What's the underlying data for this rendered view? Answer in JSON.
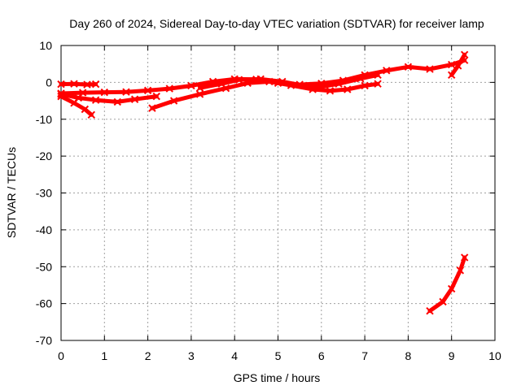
{
  "chart_data": {
    "type": "line",
    "title": "Day 260 of 2024, Sidereal Day-to-day VTEC variation (SDTVAR) for receiver lamp",
    "xlabel": "GPS time / hours",
    "ylabel": "SDTVAR / TECUs",
    "xlim": [
      0,
      10
    ],
    "ylim": [
      -70,
      10
    ],
    "x_ticks": [
      "0",
      "1",
      "2",
      "3",
      "4",
      "5",
      "6",
      "7",
      "8",
      "9",
      "10"
    ],
    "y_ticks": [
      "-70",
      "-60",
      "-50",
      "-40",
      "-30",
      "-20",
      "-10",
      "0",
      "10"
    ],
    "grid": true,
    "legend": "none",
    "series_color": "#ff0000",
    "series": [
      {
        "x": [
          0.0,
          0.3,
          0.6,
          0.8
        ],
        "y": [
          -0.5,
          -0.4,
          -0.6,
          -0.5
        ]
      },
      {
        "x": [
          0.0,
          0.5,
          1.0,
          1.5,
          2.0,
          2.5,
          3.0,
          3.5,
          4.0,
          4.5,
          5.0,
          5.5,
          6.0,
          6.5,
          7.0,
          7.5,
          8.0,
          8.5,
          9.0,
          9.3
        ],
        "y": [
          -3.0,
          -2.8,
          -2.7,
          -2.6,
          -2.2,
          -1.7,
          -0.9,
          0.2,
          0.9,
          0.8,
          -0.2,
          -0.6,
          -0.3,
          0.5,
          2.0,
          3.2,
          4.2,
          3.6,
          4.8,
          6.0
        ]
      },
      {
        "x": [
          0.0,
          0.4,
          0.8,
          1.3,
          1.7,
          2.2
        ],
        "y": [
          -3.2,
          -4.2,
          -4.8,
          -5.3,
          -4.6,
          -3.8
        ]
      },
      {
        "x": [
          0.0,
          0.3,
          0.55,
          0.7
        ],
        "y": [
          -3.8,
          -5.6,
          -7.3,
          -8.8
        ]
      },
      {
        "x": [
          2.1,
          2.6,
          3.2,
          3.8,
          4.3,
          4.8,
          5.3,
          5.8,
          6.2,
          6.6,
          7.0,
          7.3
        ],
        "y": [
          -7.0,
          -5.0,
          -3.2,
          -1.6,
          -0.2,
          0.2,
          -0.8,
          -1.9,
          -2.3,
          -1.9,
          -0.9,
          -0.4
        ]
      },
      {
        "x": [
          3.2,
          3.7,
          4.1,
          4.6,
          5.1,
          5.6,
          6.0,
          6.4,
          6.9,
          7.3
        ],
        "y": [
          -1.5,
          -0.4,
          0.7,
          0.9,
          0.2,
          -0.9,
          -1.2,
          -0.4,
          1.0,
          2.0
        ]
      },
      {
        "x": [
          9.0,
          9.15,
          9.3
        ],
        "y": [
          2.0,
          4.5,
          7.5
        ]
      },
      {
        "x": [
          8.5,
          8.8,
          9.0,
          9.2,
          9.3
        ],
        "y": [
          -62.0,
          -59.5,
          -56.0,
          -51.0,
          -47.5
        ]
      }
    ]
  }
}
